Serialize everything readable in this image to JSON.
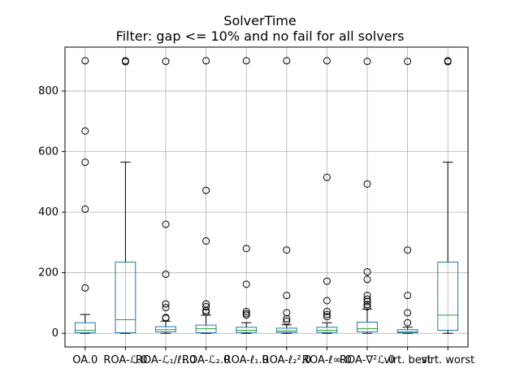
{
  "chart_data": {
    "type": "box",
    "title": "SolverTime",
    "subtitle": "Filter: gap <= 10% and no fail for all solvers",
    "xlabel": "",
    "ylabel": "",
    "ylim": [
      -45,
      945
    ],
    "yticks": [
      0,
      200,
      400,
      600,
      800
    ],
    "grid": true,
    "colors": {
      "box": "#1f77b4",
      "median": "#2ca02c",
      "whisker": "#000000",
      "grid": "#b0b0b0"
    },
    "categories": [
      "OA.0",
      "ROA-ℒ.0",
      "ROA-ℒ₁/ℓ₁.0",
      "ROA-ℒ₂.0",
      "ROA-ℓ₁.0",
      "ROA-ℓ₂².0",
      "ROA-ℓ∞.0",
      "ROA-∇²ℒ.0",
      "virt. best",
      "virt. worst"
    ],
    "boxes": [
      {
        "q1": 2,
        "median": 10,
        "q3": 35,
        "whislo": 0,
        "whishi": 62,
        "fliers": [
          150,
          410,
          565,
          668,
          900
        ]
      },
      {
        "q1": 2,
        "median": 45,
        "q3": 235,
        "whislo": 0,
        "whishi": 565,
        "fliers": [
          897,
          900
        ]
      },
      {
        "q1": 5,
        "median": 12,
        "q3": 22,
        "whislo": 0,
        "whishi": 40,
        "fliers": [
          50,
          52,
          85,
          97,
          195,
          360,
          898
        ]
      },
      {
        "q1": 2,
        "median": 15,
        "q3": 27,
        "whislo": 0,
        "whishi": 60,
        "fliers": [
          70,
          75,
          88,
          97,
          305,
          472,
          900
        ]
      },
      {
        "q1": 3,
        "median": 10,
        "q3": 20,
        "whislo": 0,
        "whishi": 35,
        "fliers": [
          60,
          65,
          72,
          162,
          280,
          900
        ]
      },
      {
        "q1": 3,
        "median": 8,
        "q3": 17,
        "whislo": 0,
        "whishi": 28,
        "fliers": [
          40,
          48,
          68,
          125,
          275,
          900
        ]
      },
      {
        "q1": 3,
        "median": 10,
        "q3": 20,
        "whislo": 0,
        "whishi": 35,
        "fliers": [
          55,
          62,
          72,
          108,
          172,
          515,
          900
        ]
      },
      {
        "q1": 5,
        "median": 15,
        "q3": 37,
        "whislo": 0,
        "whishi": 80,
        "fliers": [
          88,
          95,
          105,
          113,
          125,
          178,
          203,
          493,
          898
        ]
      },
      {
        "q1": 2,
        "median": 5,
        "q3": 12,
        "whislo": 0,
        "whishi": 20,
        "fliers": [
          35,
          68,
          125,
          275,
          898
        ]
      },
      {
        "q1": 10,
        "median": 60,
        "q3": 235,
        "whislo": 0,
        "whishi": 565,
        "fliers": [
          897,
          900
        ]
      }
    ]
  }
}
